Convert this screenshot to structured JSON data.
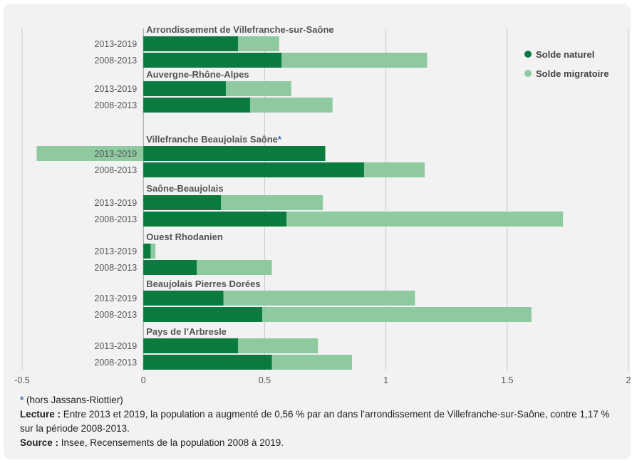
{
  "chart_data": {
    "type": "bar",
    "orientation": "horizontal",
    "stacked": true,
    "xlim": [
      -0.5,
      2
    ],
    "xticks": [
      -0.5,
      0,
      0.5,
      1,
      1.5,
      2
    ],
    "xtick_labels": [
      "-0.5",
      "0",
      "0.5",
      "1",
      "1.5",
      "2"
    ],
    "grid": true,
    "legend_position": "top-right",
    "series": [
      {
        "name": "Solde naturel",
        "color": "#0b7a3e"
      },
      {
        "name": "Solde migratoire",
        "color": "#8ec9a0"
      }
    ],
    "groups": [
      {
        "label": "Arrondissement de Villefranche-sur-Saône",
        "label_marker": "",
        "rows": [
          {
            "period": "2013-2019",
            "naturel": 0.39,
            "migratoire": 0.17
          },
          {
            "period": "2008-2013",
            "naturel": 0.57,
            "migratoire": 0.6
          }
        ]
      },
      {
        "label": "Auvergne-Rhône-Alpes",
        "label_marker": "",
        "rows": [
          {
            "period": "2013-2019",
            "naturel": 0.34,
            "migratoire": 0.27
          },
          {
            "period": "2008-2013",
            "naturel": 0.44,
            "migratoire": 0.34
          }
        ]
      },
      {
        "label": "Villefranche Beaujolais Saône",
        "label_marker": "*",
        "rows": [
          {
            "period": "2013-2019",
            "naturel": 0.75,
            "migratoire": -0.44
          },
          {
            "period": "2008-2013",
            "naturel": 0.91,
            "migratoire": 0.25
          }
        ]
      },
      {
        "label": "Saône-Beaujolais",
        "label_marker": "",
        "rows": [
          {
            "period": "2013-2019",
            "naturel": 0.32,
            "migratoire": 0.42
          },
          {
            "period": "2008-2013",
            "naturel": 0.59,
            "migratoire": 1.14
          }
        ]
      },
      {
        "label": "Ouest Rhodanien",
        "label_marker": "",
        "rows": [
          {
            "period": "2013-2019",
            "naturel": 0.03,
            "migratoire": 0.02
          },
          {
            "period": "2008-2013",
            "naturel": 0.22,
            "migratoire": 0.31
          }
        ]
      },
      {
        "label": "Beaujolais Pierres Dorées",
        "label_marker": "",
        "rows": [
          {
            "period": "2013-2019",
            "naturel": 0.33,
            "migratoire": 0.79
          },
          {
            "period": "2008-2013",
            "naturel": 0.49,
            "migratoire": 1.11
          }
        ]
      },
      {
        "label": "Pays de l’Arbresle",
        "label_marker": "",
        "rows": [
          {
            "period": "2013-2019",
            "naturel": 0.39,
            "migratoire": 0.33
          },
          {
            "period": "2008-2013",
            "naturel": 0.53,
            "migratoire": 0.33
          }
        ]
      }
    ]
  },
  "footer": {
    "note_star": "*",
    "note_text": " (hors Jassans-Riottier)",
    "lecture_label": "Lecture :",
    "lecture_text": " Entre 2013 et 2019, la population a augmenté de 0,56 % par an dans l’arrondissement de Villefranche-sur-Saône, contre 1,17 % sur la période 2008-2013.",
    "source_label": "Source :",
    "source_text": " Insee, Recensements de la population 2008 à 2019."
  }
}
